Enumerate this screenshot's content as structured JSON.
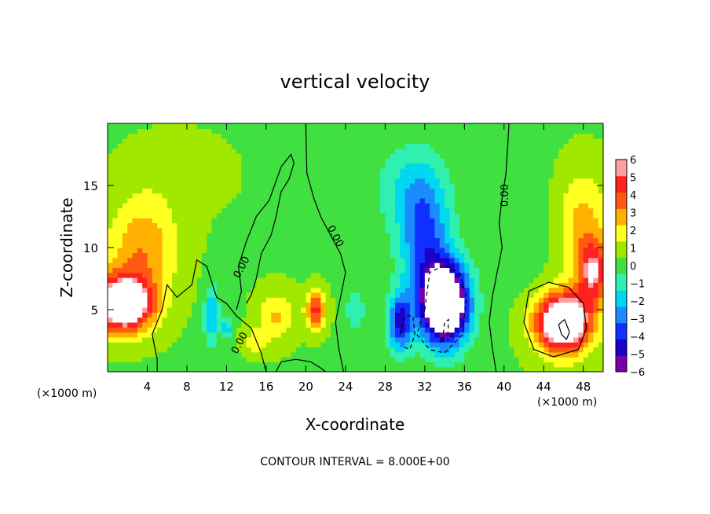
{
  "chart_data": {
    "type": "heatmap",
    "title": "vertical velocity",
    "xlabel": "X-coordinate",
    "ylabel": "Z-coordinate",
    "x_unit_left": "(×1000 m)",
    "x_unit_right": "(×1000 m)",
    "xlim": [
      0,
      50
    ],
    "ylim": [
      0,
      20
    ],
    "x_ticks": [
      4,
      8,
      12,
      16,
      20,
      24,
      28,
      32,
      36,
      40,
      44,
      48
    ],
    "y_ticks": [
      5,
      10,
      15
    ],
    "colorbar": {
      "ticks": [
        6,
        5,
        4,
        3,
        2,
        1,
        0,
        -1,
        -2,
        -3,
        -4,
        -5,
        -6
      ],
      "vmin": -6,
      "vmax": 6,
      "colors": [
        "#7a00a8",
        "#1a00c8",
        "#1030ff",
        "#1a8cff",
        "#00d8f0",
        "#30f0b0",
        "#40e040",
        "#a0e800",
        "#ffff20",
        "#ffb000",
        "#ff5a10",
        "#ff2020",
        "#ff9fa0"
      ]
    },
    "contour_label": "0.00",
    "footer": "CONTOUR INTERVAL = 8.000E+00",
    "features": [
      {
        "x": 1.5,
        "z": 5.5,
        "amp": 9,
        "sx": 3.0,
        "sz": 2.2
      },
      {
        "x": 3.5,
        "z": 10,
        "amp": 3,
        "sx": 3.5,
        "sz": 4
      },
      {
        "x": 46,
        "z": 4,
        "amp": 9,
        "sx": 2.8,
        "sz": 2.4
      },
      {
        "x": 49,
        "z": 8,
        "amp": 5,
        "sx": 1.6,
        "sz": 2.5
      },
      {
        "x": 48,
        "z": 12,
        "amp": 2.5,
        "sx": 2.5,
        "sz": 4
      },
      {
        "x": 21,
        "z": 5,
        "amp": 4.5,
        "sx": 1.0,
        "sz": 1.5
      },
      {
        "x": 17,
        "z": 4.5,
        "amp": 2.2,
        "sx": 1.8,
        "sz": 2
      },
      {
        "x": 15,
        "z": 2.5,
        "amp": 1.8,
        "sx": 1.2,
        "sz": 1
      },
      {
        "x": 34,
        "z": 5.5,
        "amp": -11,
        "sx": 2.4,
        "sz": 3.2
      },
      {
        "x": 32,
        "z": 11,
        "amp": -4,
        "sx": 2.6,
        "sz": 5
      },
      {
        "x": 29.5,
        "z": 4,
        "amp": -5,
        "sx": 1.2,
        "sz": 2.4
      },
      {
        "x": 30,
        "z": 15,
        "amp": -1.5,
        "sx": 3.5,
        "sz": 3.5
      },
      {
        "x": 10.5,
        "z": 4.5,
        "amp": -2.8,
        "sx": 0.8,
        "sz": 2.5
      },
      {
        "x": 12,
        "z": 3.5,
        "amp": -3,
        "sx": 0.4,
        "sz": 0.8
      },
      {
        "x": 25,
        "z": 5,
        "amp": -1.5,
        "sx": 1.2,
        "sz": 2
      },
      {
        "x": 7,
        "z": 16,
        "amp": 0.6,
        "sx": 5,
        "sz": 3
      },
      {
        "x": 42,
        "z": 13,
        "amp": -0.8,
        "sx": 2,
        "sz": 6
      }
    ],
    "zero_contours": [
      [
        [
          16,
          0
        ],
        [
          15.5,
          1.5
        ],
        [
          14.5,
          3.5
        ],
        [
          13,
          4.5
        ],
        [
          12,
          5.5
        ],
        [
          11,
          6
        ],
        [
          10,
          8.5
        ],
        [
          9,
          9
        ],
        [
          8.5,
          7
        ],
        [
          7,
          6
        ],
        [
          6,
          7
        ],
        [
          5.5,
          5
        ],
        [
          4.5,
          3
        ],
        [
          5,
          1
        ],
        [
          5,
          0
        ]
      ],
      [
        [
          13,
          5
        ],
        [
          13.5,
          6.5
        ],
        [
          13.2,
          8.5
        ],
        [
          14,
          10.5
        ],
        [
          15,
          12.5
        ],
        [
          16.3,
          13.8
        ],
        [
          17.5,
          16.5
        ],
        [
          18.5,
          17.5
        ],
        [
          18.8,
          16.8
        ],
        [
          18.3,
          15.5
        ],
        [
          17.5,
          14.5
        ],
        [
          17,
          12.5
        ],
        [
          16.5,
          11
        ],
        [
          15.5,
          9.5
        ],
        [
          15,
          7.5
        ],
        [
          14.5,
          6.2
        ],
        [
          14,
          5.5
        ]
      ],
      [
        [
          20,
          20
        ],
        [
          20.1,
          16
        ],
        [
          20.8,
          14
        ],
        [
          21.5,
          12.5
        ],
        [
          22.5,
          11
        ],
        [
          23.5,
          9.5
        ],
        [
          24,
          8
        ],
        [
          23.5,
          6
        ],
        [
          23,
          4
        ],
        [
          23.3,
          2
        ],
        [
          23.8,
          0
        ]
      ],
      [
        [
          40.5,
          20
        ],
        [
          40.2,
          16
        ],
        [
          39.8,
          14
        ],
        [
          39.5,
          12
        ],
        [
          39.8,
          10
        ],
        [
          39.3,
          8
        ],
        [
          38.8,
          6
        ],
        [
          38.5,
          4
        ],
        [
          38.8,
          2
        ],
        [
          39.2,
          0
        ]
      ],
      [
        [
          17,
          0
        ],
        [
          17.5,
          0.8
        ],
        [
          19,
          1
        ],
        [
          20.5,
          0.8
        ],
        [
          21.5,
          0.3
        ],
        [
          22,
          0
        ]
      ]
    ],
    "solid_contours": [
      [
        [
          42,
          4
        ],
        [
          42.5,
          6.5
        ],
        [
          44.5,
          7.2
        ],
        [
          46.5,
          6.8
        ],
        [
          48,
          5.5
        ],
        [
          48.3,
          3.5
        ],
        [
          47.5,
          1.8
        ],
        [
          45,
          1.2
        ],
        [
          43,
          1.8
        ],
        [
          42,
          4
        ]
      ],
      [
        [
          45.5,
          3.8
        ],
        [
          45.8,
          3
        ],
        [
          46.3,
          2.6
        ],
        [
          46.6,
          3.2
        ],
        [
          46.1,
          4.2
        ],
        [
          45.5,
          3.8
        ]
      ]
    ],
    "dashed_contours": [
      [
        [
          32,
          5
        ],
        [
          32.5,
          8
        ],
        [
          34,
          8.6
        ],
        [
          35.5,
          8
        ],
        [
          36.2,
          6
        ],
        [
          35.8,
          3
        ],
        [
          34,
          1.5
        ],
        [
          32.5,
          1.8
        ],
        [
          31.2,
          3
        ],
        [
          32,
          5
        ]
      ],
      [
        [
          29.5,
          3
        ],
        [
          30,
          4.5
        ],
        [
          30.8,
          4.5
        ],
        [
          31,
          3
        ],
        [
          30.5,
          1.8
        ],
        [
          29.8,
          2
        ]
      ],
      [
        [
          33.8,
          2.5
        ],
        [
          34,
          4
        ],
        [
          34.4,
          4.2
        ],
        [
          34.3,
          2.5
        ]
      ]
    ]
  }
}
